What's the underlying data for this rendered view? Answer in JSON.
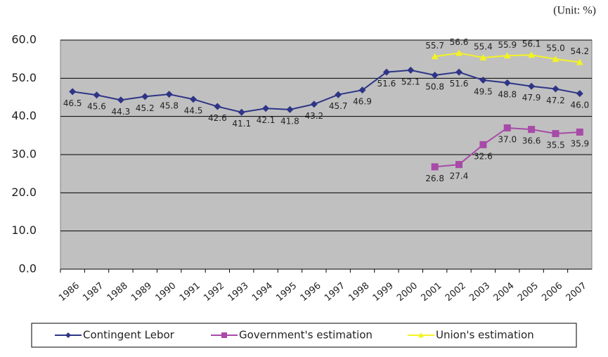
{
  "chart_data": {
    "type": "line",
    "subtitle": "(Unit: %)",
    "categories": [
      "1986",
      "1987",
      "1988",
      "1989",
      "1990",
      "1991",
      "1992",
      "1993",
      "1994",
      "1995",
      "1996",
      "1997",
      "1998",
      "1999",
      "2000",
      "2001",
      "2002",
      "2003",
      "2004",
      "2005",
      "2006",
      "2007"
    ],
    "series": [
      {
        "name": "Contingent Lebor",
        "color": "#2e3586",
        "marker": "diamond",
        "values": [
          46.5,
          45.6,
          44.3,
          45.2,
          45.8,
          44.5,
          42.6,
          41.1,
          42.1,
          41.8,
          43.2,
          45.7,
          46.9,
          51.6,
          52.1,
          50.8,
          51.6,
          49.5,
          48.8,
          47.9,
          47.2,
          46.0
        ],
        "value_labels": [
          "46.5",
          "45.6",
          "44.3",
          "45.2",
          "45.8",
          "44.5",
          "42.6",
          "41.1",
          "42.1",
          "41.8",
          "43.2",
          "45.7",
          "46.9",
          "51.6",
          "52.1",
          "50.8",
          "51.6",
          "49.5",
          "48.8",
          "47.9",
          "47.2",
          "46.0"
        ]
      },
      {
        "name": "Government's estimation",
        "color": "#a84aa8",
        "marker": "square",
        "values": [
          null,
          null,
          null,
          null,
          null,
          null,
          null,
          null,
          null,
          null,
          null,
          null,
          null,
          null,
          null,
          26.8,
          27.4,
          32.6,
          37.0,
          36.6,
          35.5,
          35.9
        ],
        "value_labels": [
          null,
          null,
          null,
          null,
          null,
          null,
          null,
          null,
          null,
          null,
          null,
          null,
          null,
          null,
          null,
          "26.8",
          "27.4",
          "32.6",
          "37.0",
          "36.6",
          "35.5",
          "35.9"
        ]
      },
      {
        "name": "Union's estimation",
        "color": "#f2f226",
        "marker": "triangle",
        "values": [
          null,
          null,
          null,
          null,
          null,
          null,
          null,
          null,
          null,
          null,
          null,
          null,
          null,
          null,
          null,
          55.7,
          56.6,
          55.4,
          55.9,
          56.1,
          55.0,
          54.2
        ],
        "value_labels": [
          null,
          null,
          null,
          null,
          null,
          null,
          null,
          null,
          null,
          null,
          null,
          null,
          null,
          null,
          null,
          "55.7",
          "56.6",
          "55.4",
          "55.9",
          "56.1",
          "55.0",
          "54.2"
        ]
      }
    ],
    "ylim": [
      0,
      60
    ],
    "yticks": [
      {
        "value": 0,
        "label": "0.0"
      },
      {
        "value": 10,
        "label": "10.0"
      },
      {
        "value": 20,
        "label": "20.0"
      },
      {
        "value": 30,
        "label": "30.0"
      },
      {
        "value": 40,
        "label": "40.0"
      },
      {
        "value": 50,
        "label": "50.0"
      },
      {
        "value": 60,
        "label": "60.0"
      }
    ],
    "grid": true,
    "legend": "bottom"
  }
}
